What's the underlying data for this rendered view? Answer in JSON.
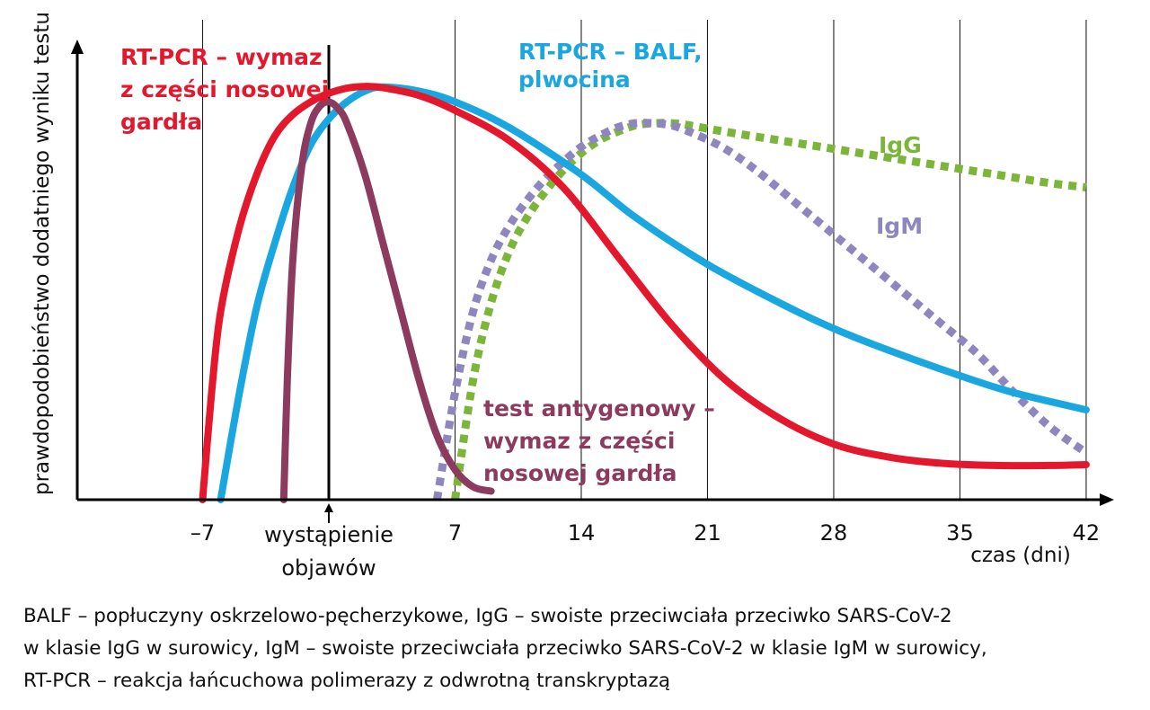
{
  "chart_data": {
    "type": "line",
    "ylabel": "prawdopodobieństwo dodatniego wyniku testu",
    "xlabel": "czas (dni)",
    "x_ticks": [
      {
        "x": -7,
        "label": "–7"
      },
      {
        "x": 7,
        "label": "7"
      },
      {
        "x": 14,
        "label": "14"
      },
      {
        "x": 21,
        "label": "21"
      },
      {
        "x": 28,
        "label": "28"
      },
      {
        "x": 35,
        "label": "35"
      },
      {
        "x": 42,
        "label": "42"
      }
    ],
    "onset_marker": {
      "x": 0,
      "label_line1": "wystąpienie",
      "label_line2": "objawów"
    },
    "xlim": [
      -14,
      43.5
    ],
    "ylim": [
      0,
      1.1
    ],
    "grid_vertical": true,
    "series": [
      {
        "key": "balf",
        "label_lines": [
          "RT-PCR – BALF,",
          "plwocina"
        ],
        "color": "#1aa7e0",
        "dashed": false,
        "x": [
          -6,
          -5,
          -4,
          -3,
          -2,
          -1,
          0,
          1,
          2,
          3,
          5,
          7,
          10,
          14,
          17,
          21,
          25,
          28,
          31,
          35,
          38,
          42
        ],
        "y": [
          0,
          0.24,
          0.45,
          0.6,
          0.73,
          0.83,
          0.89,
          0.93,
          0.955,
          0.965,
          0.955,
          0.93,
          0.87,
          0.76,
          0.66,
          0.55,
          0.46,
          0.4,
          0.35,
          0.29,
          0.25,
          0.21
        ]
      },
      {
        "key": "pcr_np",
        "label_lines": [
          "RT-PCR – wymaz",
          "z części nosowej",
          "gardła"
        ],
        "color": "#e3182c",
        "dashed": false,
        "x": [
          -7,
          -6.5,
          -6,
          -5,
          -4,
          -3,
          -2,
          -1,
          0,
          1,
          2,
          3,
          5,
          7,
          10,
          13,
          16,
          19,
          22,
          25,
          28,
          31,
          34,
          37,
          40,
          42
        ],
        "y": [
          0,
          0.25,
          0.44,
          0.63,
          0.76,
          0.85,
          0.9,
          0.93,
          0.95,
          0.962,
          0.966,
          0.963,
          0.945,
          0.91,
          0.84,
          0.73,
          0.57,
          0.41,
          0.28,
          0.19,
          0.13,
          0.1,
          0.085,
          0.08,
          0.08,
          0.082
        ]
      },
      {
        "key": "antigen",
        "label_lines": [
          "test antygenowy –",
          "wymaz z części",
          "nosowej gardła"
        ],
        "color": "#8c3b5e",
        "dashed": false,
        "x": [
          -2.5,
          -2.3,
          -2,
          -1.5,
          -1,
          -0.5,
          0,
          0.5,
          1,
          2,
          3,
          4,
          5,
          6,
          7,
          8,
          9
        ],
        "y": [
          0,
          0.28,
          0.56,
          0.78,
          0.88,
          0.92,
          0.93,
          0.915,
          0.88,
          0.76,
          0.6,
          0.44,
          0.28,
          0.15,
          0.07,
          0.03,
          0.02
        ]
      },
      {
        "key": "igm",
        "label_lines": [
          "IgM"
        ],
        "color": "#8e86be",
        "dashed": true,
        "x": [
          6,
          7,
          8,
          9,
          10,
          11,
          12,
          13,
          14,
          15,
          16,
          17,
          18,
          19,
          20,
          22,
          24,
          26,
          28,
          30,
          32,
          34,
          36,
          38,
          40,
          42
        ],
        "y": [
          0,
          0.25,
          0.44,
          0.56,
          0.64,
          0.7,
          0.75,
          0.79,
          0.825,
          0.85,
          0.87,
          0.88,
          0.88,
          0.875,
          0.86,
          0.82,
          0.76,
          0.69,
          0.62,
          0.55,
          0.48,
          0.41,
          0.34,
          0.25,
          0.17,
          0.11
        ]
      },
      {
        "key": "igg",
        "label_lines": [
          "IgG"
        ],
        "color": "#7bb63a",
        "dashed": true,
        "x": [
          7,
          8,
          9,
          10,
          11,
          12,
          13,
          14,
          15,
          16,
          17,
          18,
          19,
          20,
          22,
          25,
          28,
          31,
          34,
          37,
          40,
          42
        ],
        "y": [
          0,
          0.28,
          0.46,
          0.58,
          0.66,
          0.72,
          0.77,
          0.81,
          0.84,
          0.86,
          0.875,
          0.88,
          0.88,
          0.875,
          0.86,
          0.84,
          0.82,
          0.8,
          0.78,
          0.76,
          0.74,
          0.73
        ]
      }
    ]
  },
  "caption": {
    "line1": "BALF – popłuczyny oskrzelowo-pęcherzykowe, IgG – swoiste przeciwciała przeciwko SARS-CoV-2",
    "line2": "w klasie IgG w surowicy, IgM – swoiste przeciwciała przeciwko SARS-CoV-2 w klasie IgM w surowicy,",
    "line3": "RT-PCR – reakcja łańcuchowa polimerazy z odwrotną transkryptazą"
  }
}
